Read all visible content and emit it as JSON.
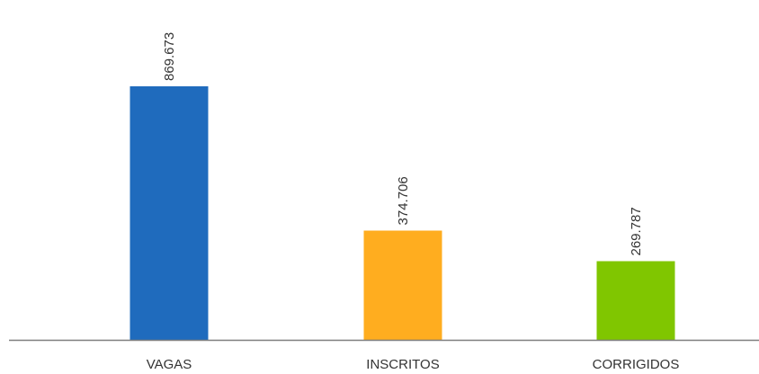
{
  "chart_data": {
    "type": "bar",
    "categories": [
      "VAGAS",
      "INSCRITOS",
      "CORRIGIDOS"
    ],
    "values": [
      869673,
      374706,
      269787
    ],
    "data_labels": [
      "869.673",
      "374.706",
      "269.787"
    ],
    "colors": [
      "#1f6bbd",
      "#ffad1f",
      "#80c600"
    ],
    "axis_color": "#7f7f7f",
    "title": "",
    "xlabel": "",
    "ylabel": "",
    "ylim": [
      0,
      1000000
    ],
    "grid": false,
    "legend": "none"
  }
}
